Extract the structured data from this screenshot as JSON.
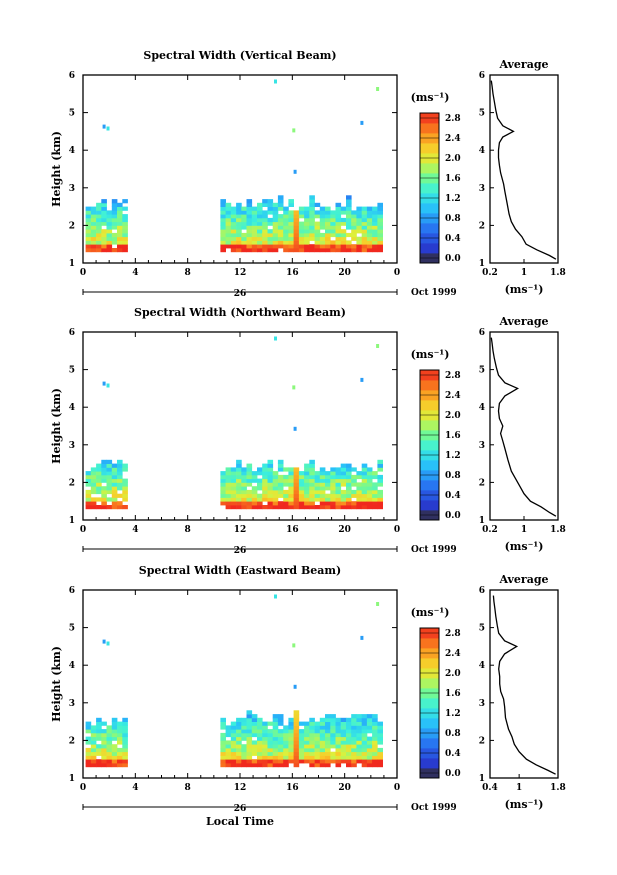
{
  "chart_data": [
    {
      "type": "heatmap",
      "title": "Spectral Width (Vertical Beam)",
      "ylabel": "Height (km)",
      "xlabel": "",
      "xlim": [
        0,
        24
      ],
      "ylim": [
        1,
        6
      ],
      "x_ticks": [
        "0",
        "4",
        "8",
        "12",
        "16",
        "20",
        "0"
      ],
      "y_ticks": [
        "1",
        "2",
        "3",
        "4",
        "5",
        "6"
      ],
      "date_label": "26",
      "month_label": "Oct 1999",
      "colorbar": {
        "unit": "(ms⁻¹)",
        "ticks": [
          "0.0",
          "0.4",
          "0.8",
          "1.2",
          "1.6",
          "2.0",
          "2.4",
          "2.8"
        ],
        "range": [
          0,
          3.0
        ]
      },
      "average": {
        "title": "Average",
        "xlabel": "(ms⁻¹)",
        "x_ticks": [
          "0.2",
          "1",
          "1.8"
        ],
        "xlim": [
          0.2,
          1.8
        ],
        "profile": [
          [
            1.1,
            1.75
          ],
          [
            1.2,
            1.6
          ],
          [
            1.35,
            1.3
          ],
          [
            1.5,
            1.05
          ],
          [
            1.7,
            0.95
          ],
          [
            1.9,
            0.8
          ],
          [
            2.1,
            0.7
          ],
          [
            2.3,
            0.65
          ],
          [
            2.6,
            0.6
          ],
          [
            2.9,
            0.55
          ],
          [
            3.1,
            0.52
          ],
          [
            3.4,
            0.45
          ],
          [
            3.6,
            0.42
          ],
          [
            3.8,
            0.4
          ],
          [
            4.0,
            0.4
          ],
          [
            4.2,
            0.42
          ],
          [
            4.35,
            0.5
          ],
          [
            4.5,
            0.75
          ],
          [
            4.65,
            0.5
          ],
          [
            4.85,
            0.38
          ],
          [
            5.05,
            0.34
          ],
          [
            5.3,
            0.3
          ],
          [
            5.5,
            0.27
          ],
          [
            5.7,
            0.25
          ],
          [
            5.85,
            0.23
          ]
        ]
      }
    },
    {
      "type": "heatmap",
      "title": "Spectral Width (Northward Beam)",
      "ylabel": "Height (km)",
      "xlabel": "",
      "xlim": [
        0,
        24
      ],
      "ylim": [
        1,
        6
      ],
      "x_ticks": [
        "0",
        "4",
        "8",
        "12",
        "16",
        "20",
        "0"
      ],
      "y_ticks": [
        "1",
        "2",
        "3",
        "4",
        "5",
        "6"
      ],
      "date_label": "26",
      "month_label": "Oct 1999",
      "colorbar": {
        "unit": "(ms⁻¹)",
        "ticks": [
          "0.0",
          "0.4",
          "0.8",
          "1.2",
          "1.6",
          "2.0",
          "2.4",
          "2.8"
        ],
        "range": [
          0,
          3.0
        ]
      },
      "average": {
        "title": "Average",
        "xlabel": "(ms⁻¹)",
        "x_ticks": [
          "0.2",
          "1",
          "1.8"
        ],
        "xlim": [
          0.2,
          1.8
        ],
        "profile": [
          [
            1.1,
            1.75
          ],
          [
            1.2,
            1.6
          ],
          [
            1.35,
            1.4
          ],
          [
            1.5,
            1.15
          ],
          [
            1.7,
            1.0
          ],
          [
            1.9,
            0.9
          ],
          [
            2.1,
            0.8
          ],
          [
            2.3,
            0.7
          ],
          [
            2.6,
            0.62
          ],
          [
            2.9,
            0.55
          ],
          [
            3.1,
            0.5
          ],
          [
            3.3,
            0.45
          ],
          [
            3.5,
            0.5
          ],
          [
            3.7,
            0.42
          ],
          [
            3.9,
            0.4
          ],
          [
            4.1,
            0.42
          ],
          [
            4.3,
            0.55
          ],
          [
            4.5,
            0.85
          ],
          [
            4.65,
            0.55
          ],
          [
            4.85,
            0.4
          ],
          [
            5.05,
            0.35
          ],
          [
            5.3,
            0.3
          ],
          [
            5.5,
            0.27
          ],
          [
            5.7,
            0.25
          ],
          [
            5.85,
            0.23
          ]
        ]
      }
    },
    {
      "type": "heatmap",
      "title": "Spectral Width (Eastward Beam)",
      "ylabel": "Height (km)",
      "xlabel": "Local Time",
      "xlim": [
        0,
        24
      ],
      "ylim": [
        1,
        6
      ],
      "x_ticks": [
        "0",
        "4",
        "8",
        "12",
        "16",
        "20",
        "0"
      ],
      "y_ticks": [
        "1",
        "2",
        "3",
        "4",
        "5",
        "6"
      ],
      "date_label": "26",
      "month_label": "Oct 1999",
      "colorbar": {
        "unit": "(ms⁻¹)",
        "ticks": [
          "0.0",
          "0.4",
          "0.8",
          "1.2",
          "1.6",
          "2.0",
          "2.4",
          "2.8"
        ],
        "range": [
          0,
          3.0
        ]
      },
      "average": {
        "title": "Average",
        "xlabel": "(ms⁻¹)",
        "x_ticks": [
          "0.4",
          "1",
          "1.8"
        ],
        "xlim": [
          0.4,
          1.8
        ],
        "profile": [
          [
            1.1,
            1.75
          ],
          [
            1.2,
            1.6
          ],
          [
            1.35,
            1.35
          ],
          [
            1.5,
            1.15
          ],
          [
            1.7,
            1.0
          ],
          [
            1.9,
            0.9
          ],
          [
            2.1,
            0.85
          ],
          [
            2.3,
            0.78
          ],
          [
            2.6,
            0.72
          ],
          [
            2.9,
            0.7
          ],
          [
            3.1,
            0.68
          ],
          [
            3.3,
            0.62
          ],
          [
            3.5,
            0.6
          ],
          [
            3.7,
            0.6
          ],
          [
            3.9,
            0.58
          ],
          [
            4.1,
            0.6
          ],
          [
            4.3,
            0.7
          ],
          [
            4.5,
            0.95
          ],
          [
            4.65,
            0.7
          ],
          [
            4.85,
            0.58
          ],
          [
            5.05,
            0.55
          ],
          [
            5.3,
            0.52
          ],
          [
            5.5,
            0.5
          ],
          [
            5.7,
            0.48
          ],
          [
            5.85,
            0.47
          ]
        ]
      }
    }
  ]
}
